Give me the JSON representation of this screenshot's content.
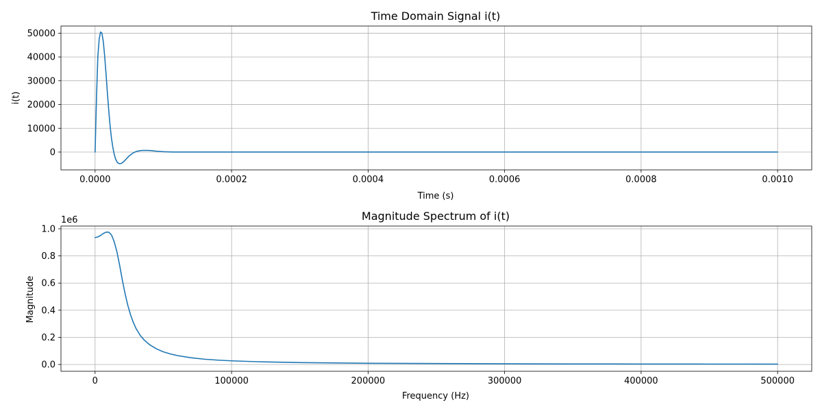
{
  "chart_data": [
    {
      "type": "line",
      "title": "Time Domain Signal i(t)",
      "xlabel": "Time (s)",
      "ylabel": "i(t)",
      "xlim": [
        -5e-05,
        0.00105
      ],
      "ylim": [
        -7500,
        53000
      ],
      "xticks": [
        0.0,
        0.0002,
        0.0004,
        0.0006,
        0.0008,
        0.001
      ],
      "xtick_labels": [
        "0.0000",
        "0.0002",
        "0.0004",
        "0.0006",
        "0.0008",
        "0.0010"
      ],
      "yticks": [
        0,
        10000,
        20000,
        30000,
        40000,
        50000
      ],
      "ytick_labels": [
        "0",
        "10000",
        "20000",
        "30000",
        "40000",
        "50000"
      ],
      "grid": true,
      "color": "#1f77b4",
      "series": [
        {
          "x": [
            0,
            2e-06,
            4e-06,
            6e-06,
            8e-06,
            1e-05,
            1.2e-05,
            1.4e-05,
            1.6e-05,
            1.8e-05,
            2e-05,
            2.2e-05,
            2.4e-05,
            2.6e-05,
            2.8e-05,
            3e-05,
            3.2e-05,
            3.4e-05,
            3.6e-05,
            3.8e-05,
            4e-05,
            4.2e-05,
            4.4e-05,
            4.6e-05,
            4.8e-05,
            5e-05,
            5.5e-05,
            6e-05,
            6.5e-05,
            7e-05,
            7.5e-05,
            8e-05,
            8.5e-05,
            9e-05,
            0.0001,
            0.00011,
            0.00012,
            0.00014,
            0.00016,
            0.0002,
            0.0003,
            0.0004,
            0.0005,
            0.0006,
            0.0007,
            0.0008,
            0.0009,
            0.001
          ],
          "y": [
            0,
            22000,
            40000,
            47500,
            50500,
            50000,
            46500,
            40500,
            33000,
            25000,
            17500,
            11000,
            5800,
            2000,
            -900,
            -2900,
            -4100,
            -4700,
            -4900,
            -4800,
            -4500,
            -4000,
            -3400,
            -2800,
            -2200,
            -1600,
            -500,
            200,
            550,
            700,
            700,
            650,
            500,
            350,
            150,
            50,
            0,
            0,
            0,
            0,
            0,
            0,
            0,
            0,
            0,
            0,
            0,
            0
          ]
        }
      ]
    },
    {
      "type": "line",
      "title": "Magnitude Spectrum of i(t)",
      "xlabel": "Frequency (Hz)",
      "ylabel": "Magnitude",
      "offset_text": "1e6",
      "xlim": [
        -25000,
        525000
      ],
      "ylim": [
        -0.05,
        1.02
      ],
      "xticks": [
        0,
        100000,
        200000,
        300000,
        400000,
        500000
      ],
      "xtick_labels": [
        "0",
        "100000",
        "200000",
        "300000",
        "400000",
        "500000"
      ],
      "yticks": [
        0.0,
        0.2,
        0.4,
        0.6,
        0.8,
        1.0
      ],
      "ytick_labels": [
        "0.0",
        "0.2",
        "0.4",
        "0.6",
        "0.8",
        "1.0"
      ],
      "grid": true,
      "color": "#1f77b4",
      "series": [
        {
          "x": [
            0,
            2000,
            4000,
            6000,
            8000,
            10000,
            12000,
            14000,
            16000,
            18000,
            20000,
            22000,
            24000,
            26000,
            28000,
            30000,
            33000,
            36000,
            40000,
            45000,
            50000,
            55000,
            60000,
            70000,
            80000,
            90000,
            100000,
            120000,
            150000,
            200000,
            250000,
            300000,
            350000,
            400000,
            450000,
            500000
          ],
          "y": [
            0.935,
            0.94,
            0.95,
            0.965,
            0.975,
            0.975,
            0.955,
            0.905,
            0.83,
            0.73,
            0.62,
            0.52,
            0.435,
            0.365,
            0.31,
            0.265,
            0.215,
            0.18,
            0.145,
            0.115,
            0.093,
            0.078,
            0.066,
            0.05,
            0.039,
            0.032,
            0.027,
            0.02,
            0.014,
            0.009,
            0.007,
            0.005,
            0.004,
            0.0035,
            0.003,
            0.0025
          ]
        }
      ]
    }
  ]
}
